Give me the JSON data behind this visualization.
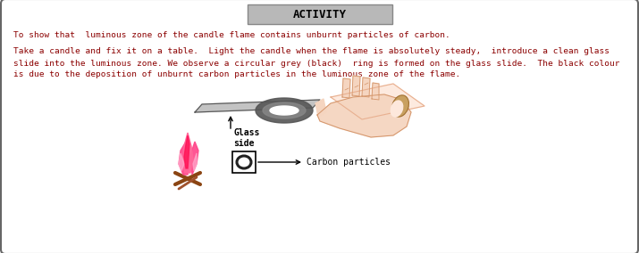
{
  "title": "ACTIVITY",
  "title_bg": "#b8b8b8",
  "title_color": "#000000",
  "border_color": "#666666",
  "bg_color": "#ffffff",
  "text_color": "#8B0000",
  "line1": "To show that  luminous zone of the candle flame contains unburnt particles of carbon.",
  "line2a": "Take a candle and fix it on a table.  Light the candle when the flame is absolutely steady,  introduce a clean glass",
  "line2b": "slide into the luminous zone. We observe a circular grey (black)  ring is formed on the glass slide.  The black colour",
  "line2c": "is due to the deposition of unburnt carbon particles in the luminous zone of the flame.",
  "label_glass": "Glass\nside",
  "label_carbon": "Carbon particles",
  "figsize": [
    7.15,
    2.84
  ],
  "dpi": 100
}
